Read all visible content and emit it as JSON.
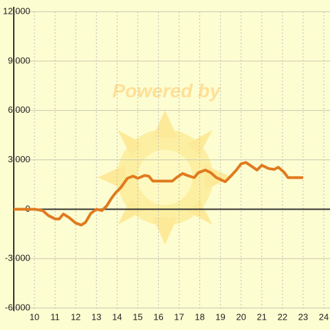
{
  "chart_data": {
    "type": "line",
    "watermark": "Powered by",
    "x": [
      9,
      10,
      10.4,
      10.67,
      11,
      11.2,
      11.4,
      11.67,
      12,
      12.27,
      12.47,
      12.73,
      13,
      13.27,
      13.5,
      13.73,
      13.93,
      14.17,
      14.5,
      14.77,
      15,
      15.33,
      15.53,
      15.73,
      16.67,
      16.87,
      17.17,
      17.4,
      17.73,
      17.93,
      18.27,
      18.53,
      18.8,
      19.23,
      19.43,
      19.77,
      20,
      20.23,
      20.53,
      20.77,
      21,
      21.33,
      21.6,
      21.8,
      22.07,
      22.27,
      23
    ],
    "series": [
      {
        "color": "#e07a1f",
        "values": [
          0,
          0,
          -80,
          -380,
          -590,
          -590,
          -290,
          -500,
          -840,
          -960,
          -800,
          -250,
          0,
          -80,
          210,
          670,
          1000,
          1300,
          1880,
          2010,
          1880,
          2050,
          2010,
          1710,
          1710,
          1920,
          2170,
          2050,
          1920,
          2220,
          2380,
          2220,
          1920,
          1670,
          1920,
          2380,
          2760,
          2840,
          2590,
          2380,
          2670,
          2470,
          2420,
          2550,
          2260,
          1920,
          1920
        ]
      }
    ],
    "xlim": [
      9,
      24.3
    ],
    "xticks": [
      10,
      11,
      12,
      13,
      14,
      15,
      16,
      17,
      18,
      19,
      20,
      21,
      22,
      23,
      24
    ],
    "ylim": [
      -6000,
      12000
    ],
    "yticks": [
      {
        "value": -6000,
        "label": "-6,000"
      },
      {
        "value": -3000,
        "label": "-3,000"
      },
      0,
      {
        "value": 3000,
        "label": "3,000"
      },
      {
        "value": 6000,
        "label": "6,000"
      },
      {
        "value": 9000,
        "label": "9,000"
      },
      {
        "value": 12000,
        "label": "12,000"
      }
    ],
    "grid": true
  }
}
